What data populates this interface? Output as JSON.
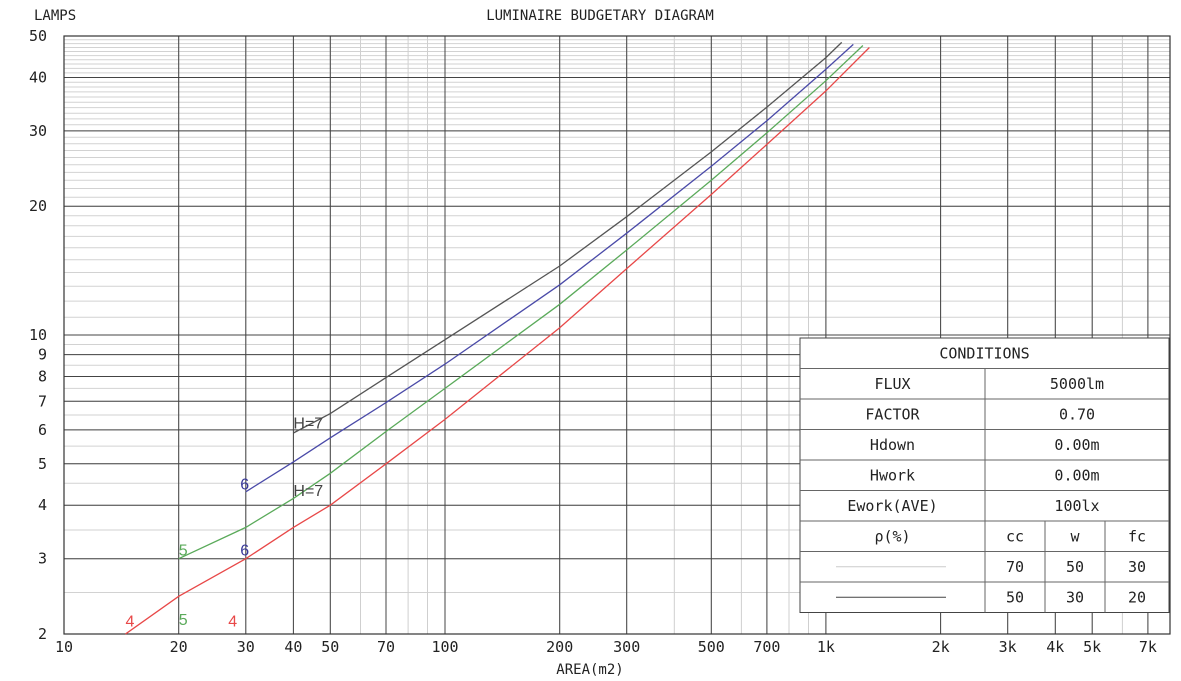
{
  "chart_data": {
    "type": "line",
    "title": "LUMINAIRE BUDGETARY DIAGRAM",
    "ylabel": "LAMPS",
    "xlabel": "AREA(m2)",
    "x_scale": "log",
    "y_scale": "log",
    "xlim": [
      10,
      8000
    ],
    "ylim": [
      2,
      50
    ],
    "grid": true,
    "x_ticks": [
      {
        "value": 10,
        "label": "10"
      },
      {
        "value": 20,
        "label": "20"
      },
      {
        "value": 30,
        "label": "30"
      },
      {
        "value": 40,
        "label": "40"
      },
      {
        "value": 50,
        "label": "50"
      },
      {
        "value": 70,
        "label": "70"
      },
      {
        "value": 100,
        "label": "100"
      },
      {
        "value": 200,
        "label": "200"
      },
      {
        "value": 300,
        "label": "300"
      },
      {
        "value": 500,
        "label": "500"
      },
      {
        "value": 700,
        "label": "700"
      },
      {
        "value": 1000,
        "label": "1k"
      },
      {
        "value": 2000,
        "label": "2k"
      },
      {
        "value": 3000,
        "label": "3k"
      },
      {
        "value": 4000,
        "label": "4k"
      },
      {
        "value": 5000,
        "label": "5k"
      },
      {
        "value": 7000,
        "label": "7k"
      }
    ],
    "y_ticks": [
      {
        "value": 2,
        "label": "2"
      },
      {
        "value": 3,
        "label": "3"
      },
      {
        "value": 4,
        "label": "4"
      },
      {
        "value": 5,
        "label": "5"
      },
      {
        "value": 6,
        "label": "6"
      },
      {
        "value": 7,
        "label": "7"
      },
      {
        "value": 8,
        "label": "8"
      },
      {
        "value": 9,
        "label": "9"
      },
      {
        "value": 10,
        "label": "10"
      },
      {
        "value": 20,
        "label": "20"
      },
      {
        "value": 30,
        "label": "30"
      },
      {
        "value": 40,
        "label": "40"
      },
      {
        "value": 50,
        "label": "50"
      }
    ],
    "series": [
      {
        "label": "H=7",
        "color": "#555555",
        "points": [
          [
            40,
            5.9
          ],
          [
            50,
            6.55
          ],
          [
            70,
            7.95
          ],
          [
            100,
            9.75
          ],
          [
            200,
            14.5
          ],
          [
            300,
            18.9
          ],
          [
            500,
            26.8
          ],
          [
            700,
            34.1
          ],
          [
            1000,
            44.5
          ],
          [
            1100,
            48.3
          ]
        ]
      },
      {
        "label": "6",
        "color": "#4a4aa8",
        "points": [
          [
            30,
            4.3
          ],
          [
            40,
            5.05
          ],
          [
            50,
            5.75
          ],
          [
            70,
            6.95
          ],
          [
            100,
            8.55
          ],
          [
            200,
            13.1
          ],
          [
            300,
            17.3
          ],
          [
            500,
            24.8
          ],
          [
            700,
            31.7
          ],
          [
            1000,
            41.8
          ],
          [
            1180,
            47.8
          ]
        ]
      },
      {
        "label": "5",
        "color": "#5aaa5a",
        "points": [
          [
            20,
            3.0
          ],
          [
            30,
            3.55
          ],
          [
            40,
            4.15
          ],
          [
            50,
            4.75
          ],
          [
            70,
            5.95
          ],
          [
            100,
            7.5
          ],
          [
            200,
            11.8
          ],
          [
            300,
            15.8
          ],
          [
            500,
            23.0
          ],
          [
            700,
            29.7
          ],
          [
            1000,
            39.3
          ],
          [
            1250,
            47.5
          ]
        ]
      },
      {
        "label": "4",
        "color": "#e84848",
        "points": [
          [
            14.5,
            2.0
          ],
          [
            20,
            2.45
          ],
          [
            30,
            3.0
          ],
          [
            40,
            3.55
          ],
          [
            50,
            4.0
          ],
          [
            70,
            5.0
          ],
          [
            100,
            6.35
          ],
          [
            200,
            10.4
          ],
          [
            300,
            14.3
          ],
          [
            500,
            21.3
          ],
          [
            700,
            27.9
          ],
          [
            1000,
            37.2
          ],
          [
            1300,
            47.0
          ]
        ]
      }
    ],
    "labels": [
      {
        "text": "H=7",
        "x": 40,
        "y": 6.05,
        "color": "#444444"
      },
      {
        "text": "6",
        "x": 29,
        "y": 4.35,
        "color": "#3a3a9a"
      },
      {
        "text": "H=7",
        "x": 40,
        "y": 4.2,
        "color": "#444444"
      },
      {
        "text": "5",
        "x": 20,
        "y": 3.05,
        "color": "#5aaa5a"
      },
      {
        "text": "6",
        "x": 29,
        "y": 3.05,
        "color": "#3a3a9a"
      },
      {
        "text": "4",
        "x": 14.5,
        "y": 2.08,
        "color": "#e84848"
      },
      {
        "text": "5",
        "x": 20,
        "y": 2.1,
        "color": "#5aaa5a"
      },
      {
        "text": "4",
        "x": 27,
        "y": 2.08,
        "color": "#e84848"
      }
    ]
  },
  "conditions": {
    "title": "CONDITIONS",
    "rows": [
      {
        "key": "FLUX",
        "value": "5000lm"
      },
      {
        "key": "FACTOR",
        "value": "0.70"
      },
      {
        "key": "Hdown",
        "value": "0.00m"
      },
      {
        "key": "Hwork",
        "value": "0.00m"
      },
      {
        "key": "Ework(AVE)",
        "value": "100lx"
      }
    ],
    "rho": {
      "label": "ρ(%)",
      "headers": [
        "cc",
        "w",
        "fc"
      ],
      "rows": [
        {
          "line_color": "#cccccc",
          "values": [
            "70",
            "50",
            "30"
          ]
        },
        {
          "line_color": "#444444",
          "values": [
            "50",
            "30",
            "20"
          ]
        }
      ]
    }
  }
}
